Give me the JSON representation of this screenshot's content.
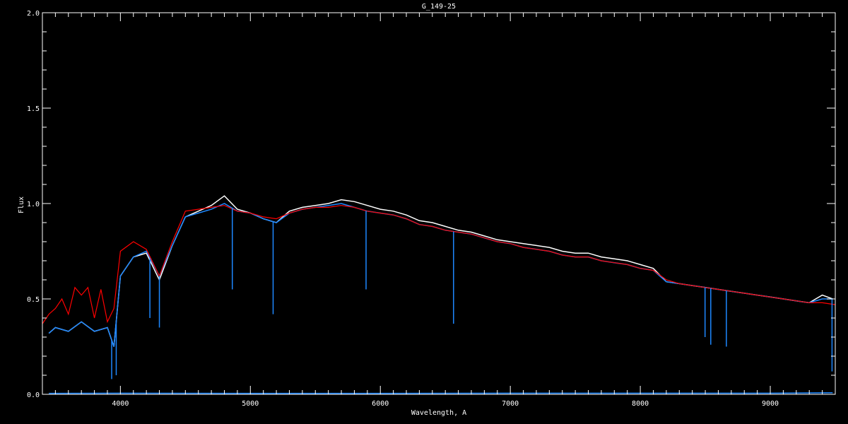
{
  "chart_data": {
    "type": "line",
    "title": "G_149-25",
    "xlabel": "Wavelength, A",
    "ylabel": "Flux",
    "xlim": [
      3400,
      9500
    ],
    "ylim": [
      0,
      2
    ],
    "xticks": [
      4000,
      5000,
      6000,
      7000,
      8000,
      9000
    ],
    "xtick_labels": [
      "4000",
      "5000",
      "6000",
      "7000",
      "8000",
      "9000"
    ],
    "yticks": [
      0,
      0.5,
      1,
      1.5,
      2
    ],
    "ytick_labels": [
      "0.0",
      "0.5",
      "1.0",
      "1.5",
      "2.0"
    ],
    "x_minor_step": 100,
    "y_minor_step": 0.1,
    "grid": false,
    "colors": {
      "background": "#000000",
      "axes": "#ffffff",
      "observed_white": "#ffffff",
      "observed_blue": "#1e88ff",
      "model": "#ff0000"
    },
    "series": [
      {
        "key": "white",
        "x": [
          3450,
          3500,
          3600,
          3700,
          3800,
          3900,
          3950,
          4000,
          4100,
          4200,
          4300,
          4400,
          4500,
          4600,
          4700,
          4800,
          4900,
          5000,
          5100,
          5200,
          5300,
          5400,
          5500,
          5600,
          5700,
          5800,
          5900,
          6000,
          6100,
          6200,
          6300,
          6400,
          6500,
          6600,
          6700,
          6800,
          6900,
          7000,
          7100,
          7200,
          7300,
          7400,
          7500,
          7600,
          7700,
          7800,
          7900,
          8000,
          8100,
          8200,
          8300,
          8400,
          8500,
          8600,
          8700,
          8800,
          8900,
          9000,
          9100,
          9200,
          9300,
          9400,
          9480
        ],
        "y": [
          0.32,
          0.35,
          0.33,
          0.38,
          0.33,
          0.35,
          0.25,
          0.62,
          0.72,
          0.74,
          0.6,
          0.78,
          0.93,
          0.96,
          0.99,
          1.04,
          0.97,
          0.95,
          0.92,
          0.9,
          0.96,
          0.98,
          0.99,
          1.0,
          1.02,
          1.01,
          0.99,
          0.97,
          0.96,
          0.94,
          0.91,
          0.9,
          0.88,
          0.86,
          0.85,
          0.83,
          0.81,
          0.8,
          0.79,
          0.78,
          0.77,
          0.75,
          0.74,
          0.74,
          0.72,
          0.71,
          0.7,
          0.68,
          0.66,
          0.59,
          0.58,
          0.57,
          0.56,
          0.55,
          0.54,
          0.53,
          0.52,
          0.51,
          0.5,
          0.49,
          0.48,
          0.52,
          0.5
        ]
      },
      {
        "key": "blue",
        "x": [
          3450,
          3500,
          3600,
          3700,
          3800,
          3900,
          3950,
          4000,
          4100,
          4200,
          4300,
          4400,
          4500,
          4600,
          4700,
          4800,
          4900,
          5000,
          5100,
          5200,
          5300,
          5400,
          5500,
          5600,
          5700,
          5800,
          5900,
          6000,
          6100,
          6200,
          6300,
          6400,
          6500,
          6600,
          6700,
          6800,
          6900,
          7000,
          7100,
          7200,
          7300,
          7400,
          7500,
          7600,
          7700,
          7800,
          7900,
          8000,
          8100,
          8200,
          8300,
          8400,
          8500,
          8600,
          8700,
          8800,
          8900,
          9000,
          9100,
          9200,
          9300,
          9400,
          9480
        ],
        "y": [
          0.32,
          0.35,
          0.33,
          0.38,
          0.33,
          0.35,
          0.25,
          0.62,
          0.72,
          0.75,
          0.62,
          0.78,
          0.93,
          0.95,
          0.97,
          1.0,
          0.96,
          0.95,
          0.92,
          0.9,
          0.95,
          0.97,
          0.98,
          0.99,
          1.0,
          0.98,
          0.96,
          0.95,
          0.94,
          0.92,
          0.89,
          0.88,
          0.86,
          0.85,
          0.84,
          0.82,
          0.8,
          0.79,
          0.77,
          0.76,
          0.75,
          0.73,
          0.72,
          0.72,
          0.7,
          0.69,
          0.68,
          0.66,
          0.65,
          0.59,
          0.58,
          0.57,
          0.56,
          0.55,
          0.54,
          0.53,
          0.52,
          0.51,
          0.5,
          0.49,
          0.48,
          0.5,
          0.5
        ]
      },
      {
        "key": "model",
        "x": [
          3400,
          3450,
          3500,
          3550,
          3600,
          3650,
          3700,
          3750,
          3800,
          3850,
          3900,
          3950,
          4000,
          4100,
          4200,
          4300,
          4400,
          4500,
          4600,
          4700,
          4800,
          4900,
          5000,
          5100,
          5200,
          5300,
          5400,
          5500,
          5600,
          5700,
          5800,
          5900,
          6000,
          6100,
          6200,
          6300,
          6400,
          6500,
          6600,
          6700,
          6800,
          6900,
          7000,
          7100,
          7200,
          7300,
          7400,
          7500,
          7600,
          7700,
          7800,
          7900,
          8000,
          8100,
          8200,
          8300,
          8400,
          8500,
          8600,
          8700,
          8800,
          8900,
          9000,
          9100,
          9200,
          9300,
          9400,
          9500
        ],
        "y": [
          0.37,
          0.42,
          0.45,
          0.5,
          0.42,
          0.56,
          0.52,
          0.56,
          0.4,
          0.55,
          0.38,
          0.45,
          0.75,
          0.8,
          0.76,
          0.62,
          0.8,
          0.96,
          0.97,
          0.98,
          0.99,
          0.96,
          0.95,
          0.93,
          0.92,
          0.95,
          0.97,
          0.98,
          0.98,
          0.99,
          0.98,
          0.96,
          0.95,
          0.94,
          0.92,
          0.89,
          0.88,
          0.86,
          0.85,
          0.84,
          0.82,
          0.8,
          0.79,
          0.77,
          0.76,
          0.75,
          0.73,
          0.72,
          0.72,
          0.7,
          0.69,
          0.68,
          0.66,
          0.65,
          0.6,
          0.58,
          0.57,
          0.56,
          0.55,
          0.54,
          0.53,
          0.52,
          0.51,
          0.5,
          0.49,
          0.48,
          0.48,
          0.47
        ]
      },
      {
        "key": "error",
        "x": [
          3450,
          4000,
          5000,
          6000,
          7000,
          8000,
          9000,
          9480
        ],
        "y": [
          0.005,
          0.006,
          0.005,
          0.005,
          0.006,
          0.006,
          0.006,
          0.008
        ]
      }
    ],
    "absorption_lines": [
      {
        "x": 3933,
        "y": 0.08
      },
      {
        "x": 3968,
        "y": 0.1
      },
      {
        "x": 4227,
        "y": 0.4
      },
      {
        "x": 4300,
        "y": 0.35
      },
      {
        "x": 4861,
        "y": 0.55
      },
      {
        "x": 5175,
        "y": 0.42
      },
      {
        "x": 5890,
        "y": 0.55
      },
      {
        "x": 6563,
        "y": 0.37
      },
      {
        "x": 8498,
        "y": 0.3
      },
      {
        "x": 8542,
        "y": 0.26
      },
      {
        "x": 8662,
        "y": 0.25
      },
      {
        "x": 9475,
        "y": 0.12
      }
    ]
  }
}
